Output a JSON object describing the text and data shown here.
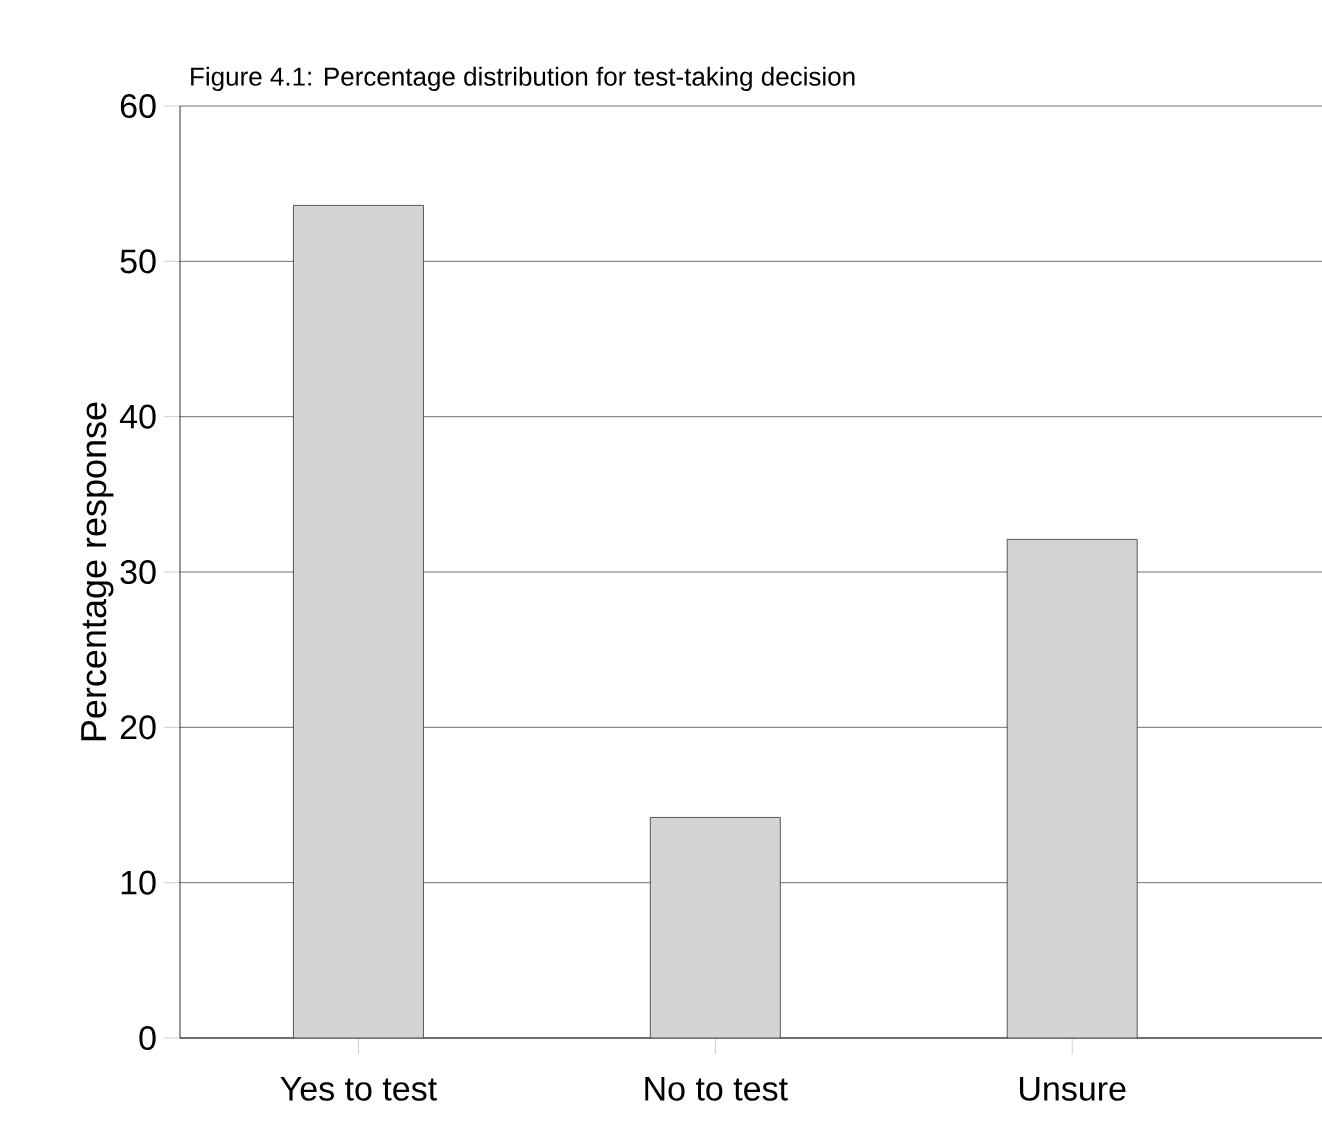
{
  "chart_data": {
    "type": "bar",
    "title": "Figure 4.1: Percentage distribution for test-taking decision",
    "ylabel": "Percentage response",
    "categories": [
      "Yes to test",
      "No to test",
      "Unsure"
    ],
    "values": [
      53.6,
      14.2,
      32.1
    ],
    "color": "#d4d4d4",
    "ylim": [
      0,
      60
    ],
    "yticks": [
      0,
      10,
      20,
      30,
      40,
      50,
      60
    ],
    "grid": "y"
  }
}
